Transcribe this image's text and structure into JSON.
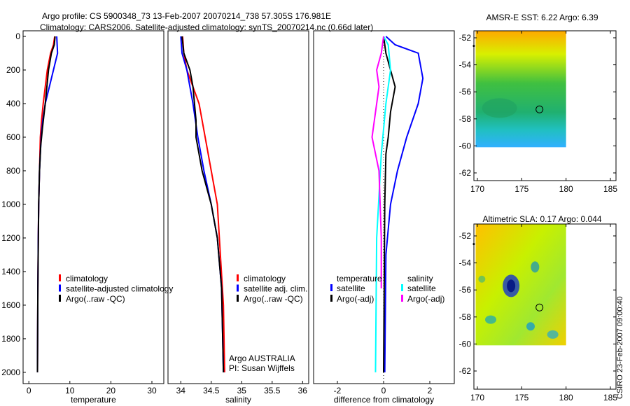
{
  "title_line1": "Argo profile: CS 5900348_73 13-Feb-2007 20070214_738 57.305S 176.981E",
  "title_line2": "Climatology: CARS2006. Satellite-adjusted climatology: synTS_20070214.nc (0.66d later)",
  "footer_stamp": "CSIRO 23-Feb-2007 09:00:40",
  "colors": {
    "red": "#ff0000",
    "blue": "#0000ff",
    "black": "#000000",
    "cyan": "#00ffff",
    "magenta": "#ff00ff"
  },
  "chart_data": [
    {
      "type": "line",
      "xlabel": "temperature",
      "ylabel": "",
      "xlim": [
        -1.4,
        32.9
      ],
      "ylim": [
        0,
        2067
      ],
      "y_reversed": true,
      "xticks": [
        "0",
        "10",
        "20",
        "30"
      ],
      "xtick_values": [
        0,
        10,
        20,
        30
      ],
      "yticks": [
        "0",
        "200",
        "400",
        "600",
        "800",
        "1000",
        "1200",
        "1400",
        "1600",
        "1800",
        "2000"
      ],
      "ytick_values": [
        0,
        200,
        400,
        600,
        800,
        1000,
        1200,
        1400,
        1600,
        1800,
        2000
      ],
      "legend": [
        "climatology",
        "satellite-adjusted climatology",
        "Argo(..raw -QC)"
      ],
      "series": [
        {
          "name": "climatology",
          "color": "#ff0000",
          "x": [
            6.3,
            6,
            5.3,
            4.5,
            4,
            3.5,
            3.1,
            2.8,
            2.6,
            2.4,
            2.3,
            2.2,
            2.1
          ],
          "y": [
            0,
            50,
            100,
            200,
            300,
            400,
            500,
            600,
            800,
            1000,
            1200,
            1500,
            2000
          ]
        },
        {
          "name": "satellite-adjusted climatology",
          "color": "#0000ff",
          "x": [
            6.8,
            7,
            6,
            5,
            4,
            3.4,
            3,
            2.6,
            2.4,
            2.3,
            2.2,
            2.1
          ],
          "y": [
            0,
            100,
            200,
            300,
            400,
            500,
            600,
            800,
            1000,
            1200,
            1500,
            2000
          ]
        },
        {
          "name": "Argo(..raw -QC)",
          "color": "#000000",
          "x": [
            6.4,
            6.2,
            5.5,
            4.8,
            4,
            3.3,
            2.9,
            2.6,
            2.4,
            2.2,
            2.1
          ],
          "y": [
            0,
            50,
            100,
            200,
            400,
            550,
            650,
            800,
            1000,
            1500,
            2000
          ]
        }
      ]
    },
    {
      "type": "line",
      "xlabel": "salinity",
      "xlim": [
        33.79,
        36.1
      ],
      "ylim": [
        0,
        2067
      ],
      "y_reversed": true,
      "xticks": [
        "34",
        "34.5",
        "35",
        "35.5",
        "36"
      ],
      "xtick_values": [
        34,
        34.5,
        35,
        35.5,
        36
      ],
      "legend": [
        "climatology",
        "satellite adj. clim.",
        "Argo(..raw -QC)"
      ],
      "annotations": [
        "Argo AUSTRALIA",
        "PI: Susan Wijffels"
      ],
      "series": [
        {
          "name": "climatology",
          "color": "#ff0000",
          "x": [
            34.03,
            34.05,
            34.1,
            34.2,
            34.3,
            34.4,
            34.5,
            34.6,
            34.65,
            34.7,
            34.72
          ],
          "y": [
            0,
            100,
            200,
            300,
            400,
            600,
            800,
            1000,
            1300,
            1600,
            2000
          ]
        },
        {
          "name": "satellite adj. clim.",
          "color": "#0000ff",
          "x": [
            34,
            34.02,
            34.1,
            34.2,
            34.28,
            34.38,
            34.5,
            34.6,
            34.67,
            34.7
          ],
          "y": [
            0,
            100,
            200,
            400,
            600,
            800,
            1000,
            1200,
            1500,
            2000
          ]
        },
        {
          "name": "Argo(..raw -QC)",
          "color": "#000000",
          "x": [
            34.02,
            34.05,
            34.15,
            34.2,
            34.25,
            34.25,
            34.35,
            34.5,
            34.6,
            34.67,
            34.7
          ],
          "y": [
            0,
            100,
            200,
            300,
            500,
            600,
            800,
            1000,
            1200,
            1500,
            2000
          ]
        }
      ]
    },
    {
      "type": "line",
      "xlabel": "difference from climatology",
      "xlim": [
        -3.03,
        3.06
      ],
      "ylim": [
        0,
        2067
      ],
      "y_reversed": true,
      "xticks": [
        "-2",
        "0",
        "2"
      ],
      "xtick_values": [
        -2,
        0,
        2
      ],
      "legend_groups": [
        {
          "title": "temperature",
          "items": [
            "satellite",
            "Argo(-adj)"
          ]
        },
        {
          "title": "salinity",
          "items": [
            "satellite",
            "Argo(-adj)"
          ]
        }
      ],
      "series": [
        {
          "name": "temperature satellite",
          "color": "#0000ff",
          "x": [
            0.1,
            0.5,
            1.5,
            1.7,
            1.5,
            1.0,
            0.6,
            0.3,
            0.1,
            0.05
          ],
          "y": [
            0,
            50,
            100,
            250,
            400,
            600,
            800,
            1000,
            1300,
            2000
          ]
        },
        {
          "name": "temperature Argo(-adj)",
          "color": "#000000",
          "x": [
            0,
            0.1,
            0.3,
            0.5,
            0.3,
            0.2,
            0.1,
            0.05,
            0
          ],
          "y": [
            0,
            100,
            200,
            300,
            450,
            600,
            700,
            1000,
            2000
          ]
        },
        {
          "name": "salinity satellite",
          "color": "#00ffff",
          "x": [
            0,
            0.2,
            0.3,
            0.1,
            -0.1,
            -0.3,
            -0.35
          ],
          "y": [
            0,
            50,
            200,
            400,
            700,
            1200,
            2000
          ]
        },
        {
          "name": "salinity Argo(-adj)",
          "color": "#ff00ff",
          "x": [
            0,
            -0.1,
            -0.3,
            -0.2,
            -0.5,
            -0.2,
            -0.1,
            -0.1
          ],
          "y": [
            0,
            100,
            200,
            300,
            600,
            800,
            1200,
            1500
          ]
        }
      ]
    },
    {
      "type": "heatmap",
      "title": "AMSR-E SST: 6.22 Argo: 6.39",
      "xlim": [
        168,
        186
      ],
      "ylim": [
        -63.5,
        -51.5
      ],
      "xticks": [
        "170",
        "175",
        "180",
        "185"
      ],
      "xtick_values": [
        170,
        175,
        180,
        185
      ],
      "yticks": [
        "-52",
        "-54",
        "-56",
        "-58",
        "-60",
        "-62"
      ],
      "ytick_values": [
        -52,
        -54,
        -56,
        -58,
        -60,
        -62
      ],
      "float_position": [
        177,
        -57.3
      ],
      "marker_position": [
        169.6,
        -52.6
      ]
    },
    {
      "type": "heatmap",
      "title": "Altimetric SLA: 0.17 Argo: 0.044",
      "xlim": [
        168,
        186
      ],
      "ylim": [
        -63.5,
        -51.5
      ],
      "xticks": [
        "170",
        "175",
        "180",
        "185"
      ],
      "xtick_values": [
        170,
        175,
        180,
        185
      ],
      "yticks": [
        "-52",
        "-54",
        "-56",
        "-58",
        "-60",
        "-62"
      ],
      "ytick_values": [
        -52,
        -54,
        -56,
        -58,
        -60,
        -62
      ],
      "float_position": [
        177,
        -57.3
      ],
      "marker_position": [
        169.6,
        -52.6
      ]
    }
  ]
}
